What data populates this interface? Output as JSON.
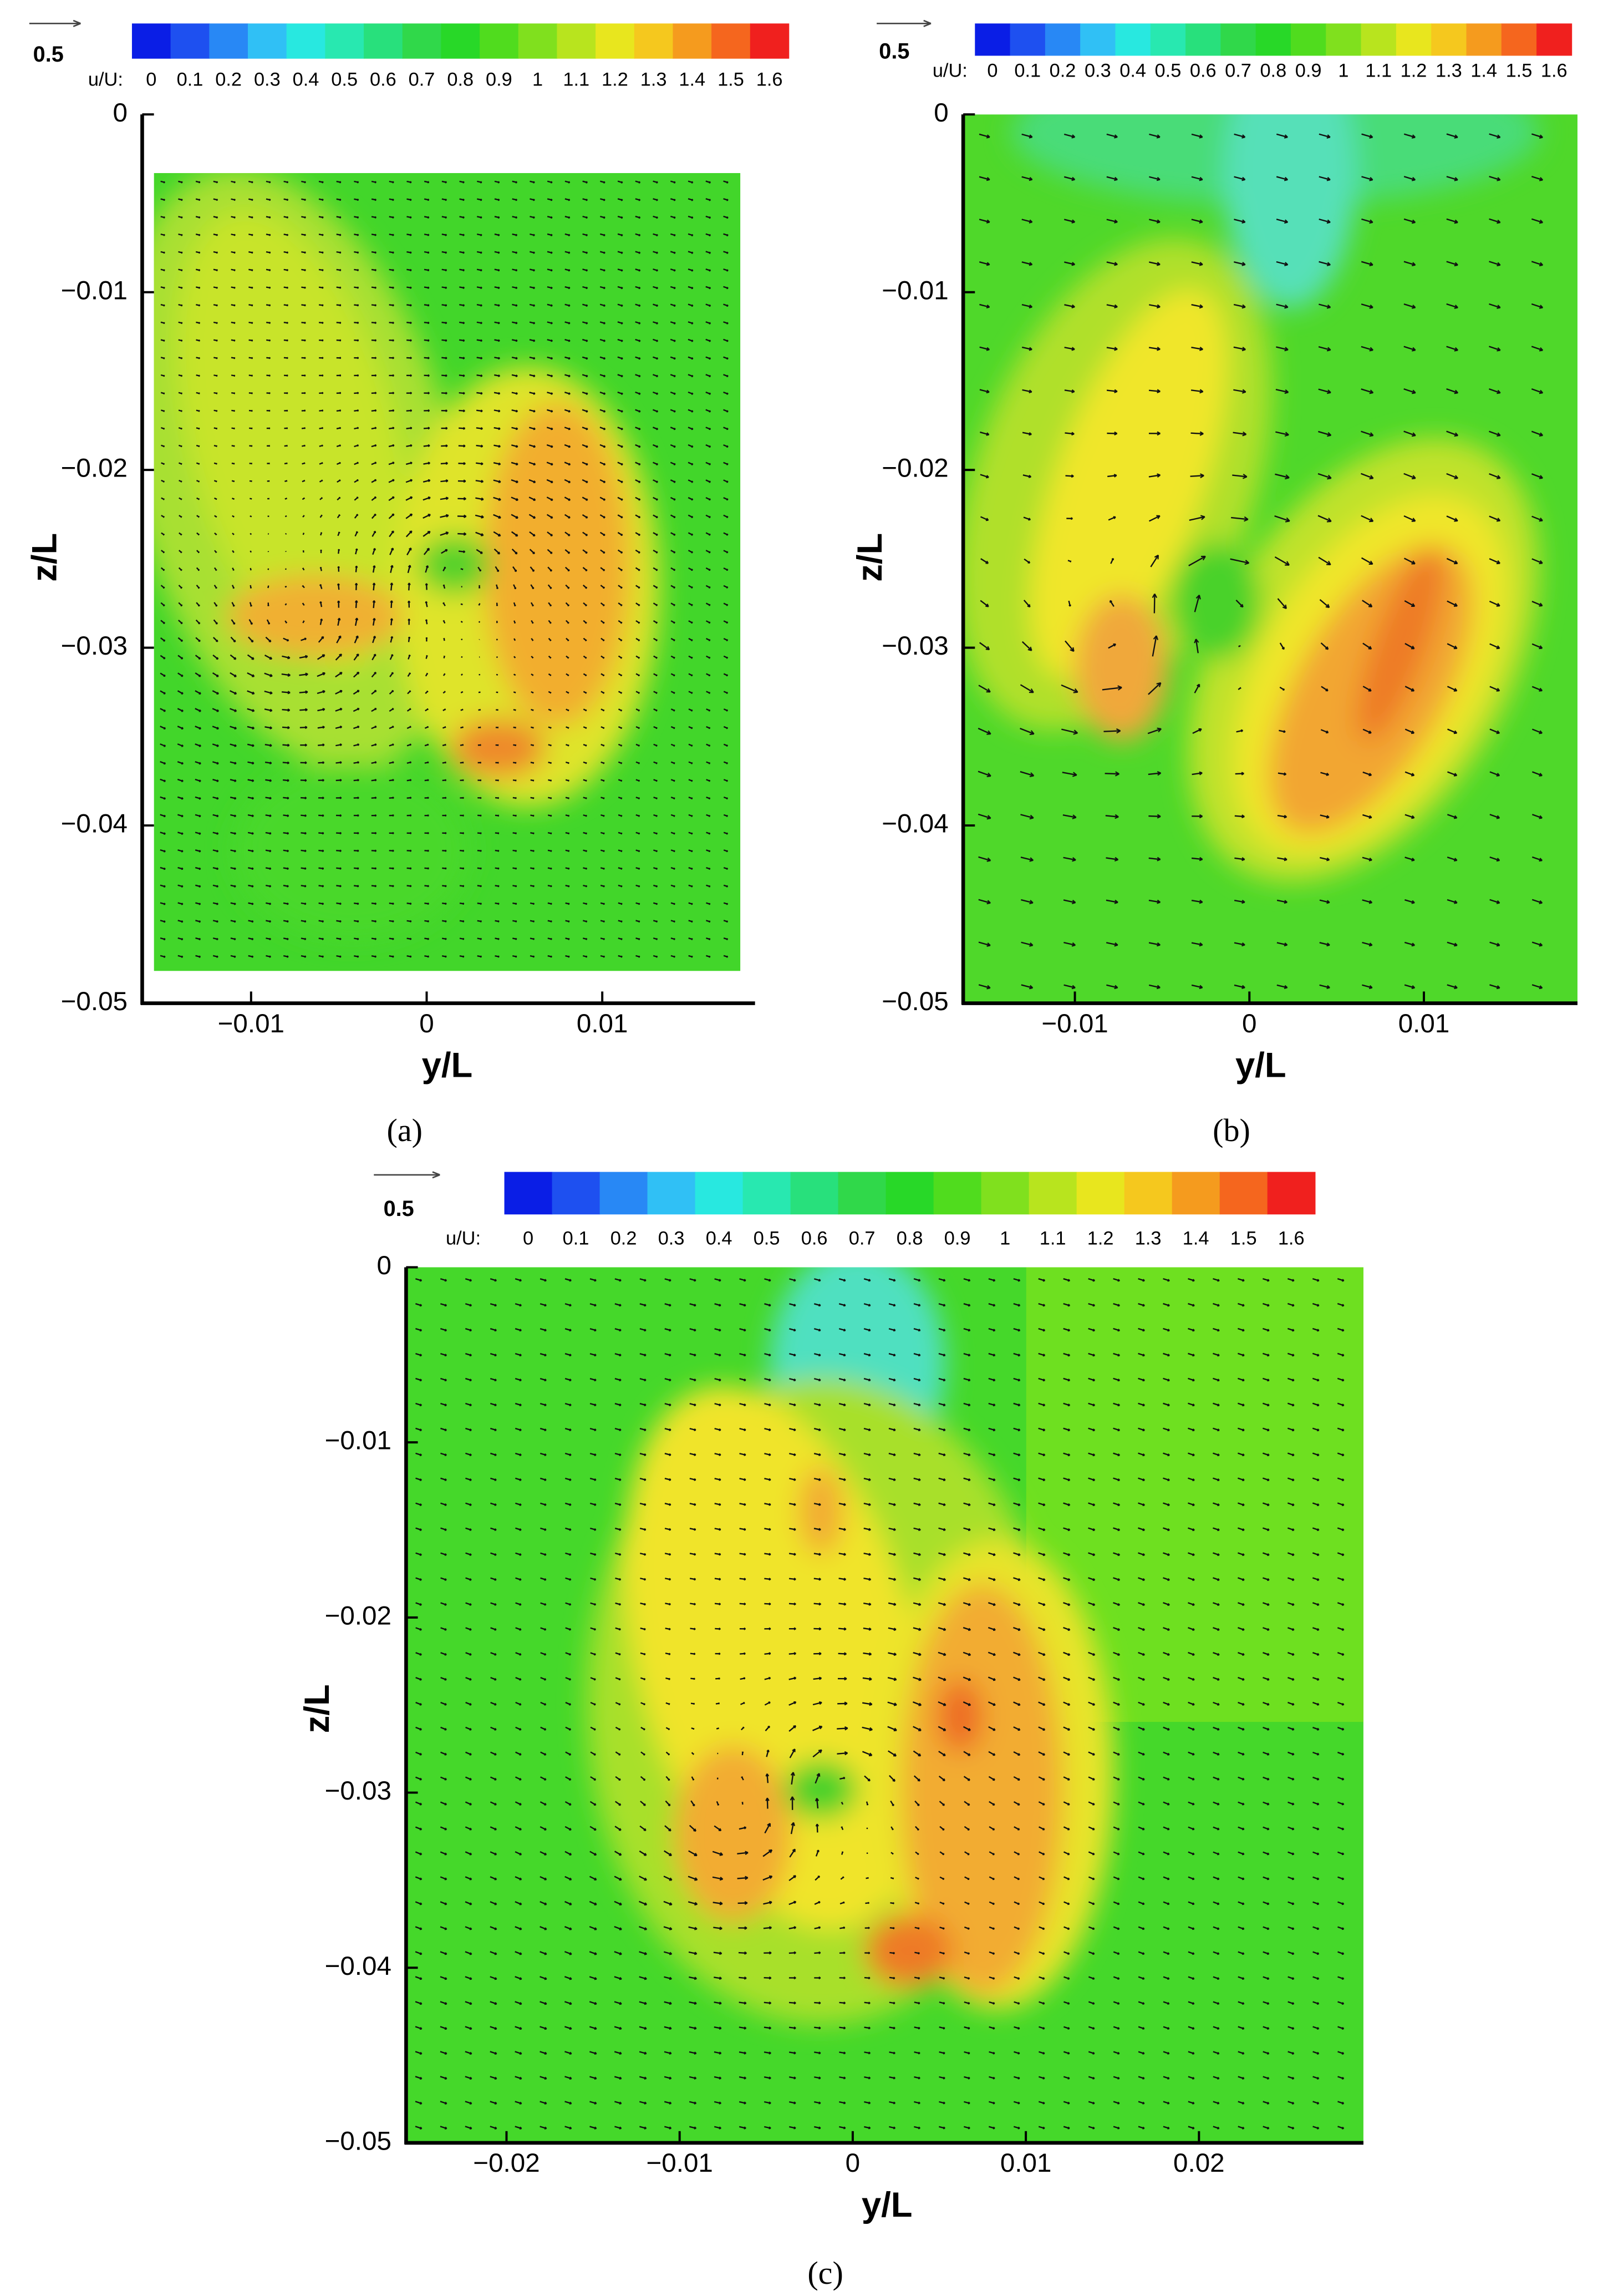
{
  "chart_data": [
    {
      "type": "contour",
      "panel_label": "(a)",
      "xlabel": "y/L",
      "ylabel": "z/L",
      "xlim": [
        -0.0162,
        0.0187
      ],
      "ylim": [
        -0.05,
        0
      ],
      "xticks": [
        {
          "value": -0.01,
          "label": "−0.01"
        },
        0,
        0.01
      ],
      "yticks": [
        0,
        {
          "value": -0.01,
          "label": "−0.01"
        },
        {
          "value": -0.02,
          "label": "−0.02"
        },
        {
          "value": -0.03,
          "label": "−0.03"
        },
        {
          "value": -0.04,
          "label": "−0.04"
        },
        {
          "value": -0.05,
          "label": "−0.05"
        }
      ],
      "reference_vector": 0.5,
      "colorbar": {
        "label": "u/U:",
        "levels": [
          0,
          0.1,
          0.2,
          0.3,
          0.4,
          0.5,
          0.6,
          0.7,
          0.8,
          0.9,
          1,
          1.1,
          1.2,
          1.3,
          1.4,
          1.5,
          1.6
        ],
        "colors": [
          "#0a1ee6",
          "#1e50f0",
          "#2888f5",
          "#30c0f5",
          "#28e8e0",
          "#28e8b0",
          "#28e07c",
          "#30d84a",
          "#28d828",
          "#50dc1e",
          "#80e01e",
          "#b8e41e",
          "#e8e61e",
          "#f5c81e",
          "#f59b1e",
          "#f5661e",
          "#f0201e"
        ]
      }
    },
    {
      "type": "contour",
      "panel_label": "(b)",
      "xlabel": "y/L",
      "ylabel": "z/L",
      "xlim": [
        -0.0164,
        0.0188
      ],
      "ylim": [
        -0.05,
        0
      ],
      "xticks": [
        {
          "value": -0.01,
          "label": "−0.01"
        },
        0,
        0.01
      ],
      "yticks": [
        0,
        {
          "value": -0.01,
          "label": "−0.01"
        },
        {
          "value": -0.02,
          "label": "−0.02"
        },
        {
          "value": -0.03,
          "label": "−0.03"
        },
        {
          "value": -0.04,
          "label": "−0.04"
        },
        {
          "value": -0.05,
          "label": "−0.05"
        }
      ],
      "reference_vector": 0.5,
      "colorbar": {
        "label": "u/U:",
        "levels": [
          0,
          0.1,
          0.2,
          0.3,
          0.4,
          0.5,
          0.6,
          0.7,
          0.8,
          0.9,
          1,
          1.1,
          1.2,
          1.3,
          1.4,
          1.5,
          1.6
        ],
        "colors": [
          "#0a1ee6",
          "#1e50f0",
          "#2888f5",
          "#30c0f5",
          "#28e8e0",
          "#28e8b0",
          "#28e07c",
          "#30d84a",
          "#28d828",
          "#50dc1e",
          "#80e01e",
          "#b8e41e",
          "#e8e61e",
          "#f5c81e",
          "#f59b1e",
          "#f5661e",
          "#f0201e"
        ]
      }
    },
    {
      "type": "contour",
      "panel_label": "(c)",
      "xlabel": "y/L",
      "ylabel": "z/L",
      "xlim": [
        -0.0258,
        0.0295
      ],
      "ylim": [
        -0.05,
        0
      ],
      "xticks": [
        {
          "value": -0.02,
          "label": "−0.02"
        },
        {
          "value": -0.01,
          "label": "−0.01"
        },
        0,
        0.01,
        0.02
      ],
      "yticks": [
        0,
        {
          "value": -0.01,
          "label": "−0.01"
        },
        {
          "value": -0.02,
          "label": "−0.02"
        },
        {
          "value": -0.03,
          "label": "−0.03"
        },
        {
          "value": -0.04,
          "label": "−0.04"
        },
        {
          "value": -0.05,
          "label": "−0.05"
        }
      ],
      "reference_vector": 0.5,
      "colorbar": {
        "label": "u/U:",
        "levels": [
          0,
          0.1,
          0.2,
          0.3,
          0.4,
          0.5,
          0.6,
          0.7,
          0.8,
          0.9,
          1,
          1.1,
          1.2,
          1.3,
          1.4,
          1.5,
          1.6
        ],
        "colors": [
          "#0a1ee6",
          "#1e50f0",
          "#2888f5",
          "#30c0f5",
          "#28e8e0",
          "#28e8b0",
          "#28e07c",
          "#30d84a",
          "#28d828",
          "#50dc1e",
          "#80e01e",
          "#b8e41e",
          "#e8e61e",
          "#f5c81e",
          "#f59b1e",
          "#f5661e",
          "#f0201e"
        ]
      }
    }
  ]
}
